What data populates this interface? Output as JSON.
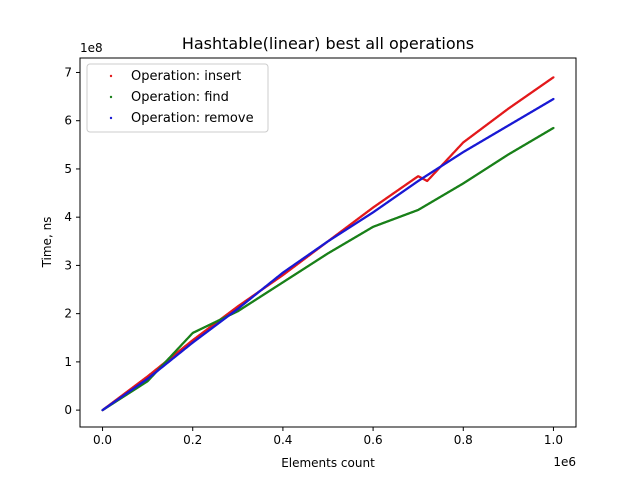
{
  "chart_data": {
    "type": "scatter",
    "title": "Hashtable(linear) best all operations",
    "xlabel": "Elements count",
    "ylabel": "Time, ns",
    "x_multiplier_label": "1e6",
    "y_multiplier_label": "1e8",
    "xlim": [
      -0.05,
      1.05
    ],
    "ylim": [
      -0.35,
      7.3
    ],
    "x_ticks": [
      0.0,
      0.2,
      0.4,
      0.6,
      0.8,
      1.0
    ],
    "x_tick_labels": [
      "0.0",
      "0.2",
      "0.4",
      "0.6",
      "0.8",
      "1.0"
    ],
    "y_ticks": [
      0,
      1,
      2,
      3,
      4,
      5,
      6,
      7
    ],
    "y_tick_labels": [
      "0",
      "1",
      "2",
      "3",
      "4",
      "5",
      "6",
      "7"
    ],
    "grid": false,
    "legend_position": "top-left",
    "series": [
      {
        "name": "Operation: insert",
        "color": "#e31a1c",
        "points": [
          [
            0.0,
            0.0
          ],
          [
            0.1,
            0.7
          ],
          [
            0.2,
            1.45
          ],
          [
            0.3,
            2.15
          ],
          [
            0.4,
            2.8
          ],
          [
            0.5,
            3.5
          ],
          [
            0.6,
            4.2
          ],
          [
            0.7,
            4.85
          ],
          [
            0.72,
            4.75
          ],
          [
            0.8,
            5.55
          ],
          [
            0.9,
            6.25
          ],
          [
            1.0,
            6.9
          ]
        ]
      },
      {
        "name": "Operation: find",
        "color": "#1a801a",
        "points": [
          [
            0.0,
            0.0
          ],
          [
            0.1,
            0.6
          ],
          [
            0.2,
            1.6
          ],
          [
            0.3,
            2.05
          ],
          [
            0.4,
            2.65
          ],
          [
            0.5,
            3.25
          ],
          [
            0.6,
            3.8
          ],
          [
            0.7,
            4.15
          ],
          [
            0.8,
            4.7
          ],
          [
            0.9,
            5.3
          ],
          [
            1.0,
            5.85
          ]
        ]
      },
      {
        "name": "Operation: remove",
        "color": "#1a1ad4",
        "points": [
          [
            0.0,
            0.0
          ],
          [
            0.1,
            0.65
          ],
          [
            0.2,
            1.4
          ],
          [
            0.3,
            2.1
          ],
          [
            0.4,
            2.85
          ],
          [
            0.5,
            3.5
          ],
          [
            0.6,
            4.1
          ],
          [
            0.7,
            4.75
          ],
          [
            0.8,
            5.35
          ],
          [
            0.9,
            5.9
          ],
          [
            1.0,
            6.45
          ]
        ]
      }
    ]
  }
}
